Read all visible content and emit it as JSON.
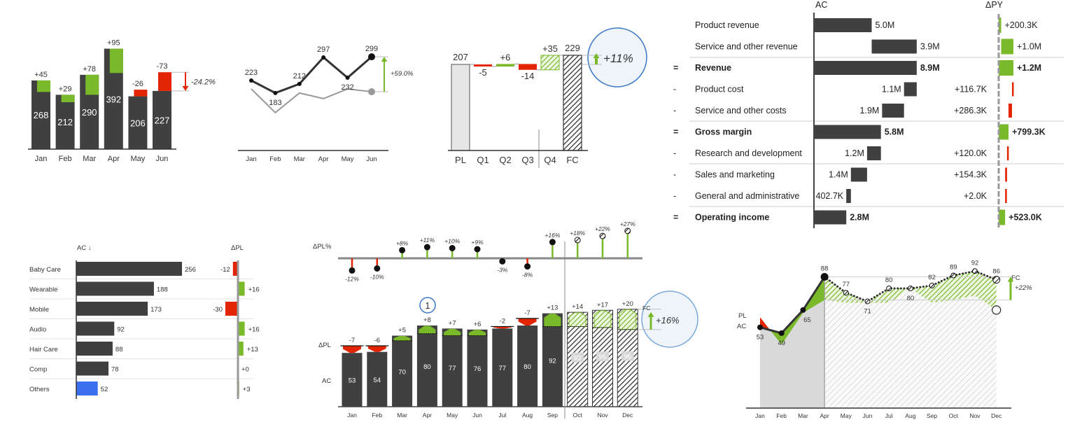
{
  "colors": {
    "actual": "#404040",
    "positive": "#7ab929",
    "negative": "#e32400",
    "plan": "#e6e6e6",
    "highlight": "#3b78c4",
    "others": "#3b6ff0",
    "axis": "#333333"
  },
  "chart_data": [
    {
      "type": "bar",
      "categories": [
        "Jan",
        "Feb",
        "Mar",
        "Apr",
        "May",
        "Jun"
      ],
      "values": [
        268,
        212,
        290,
        392,
        206,
        227
      ],
      "deltas": [
        45,
        29,
        78,
        95,
        -26,
        -73
      ],
      "delta_labels": [
        "+45",
        "+29",
        "+78",
        "+95",
        "-26",
        "-73"
      ],
      "annotation": "-24.2%"
    },
    {
      "type": "line",
      "categories": [
        "Jan",
        "Feb",
        "Mar",
        "Apr",
        "May",
        "Jun"
      ],
      "values": [
        223,
        183,
        212,
        297,
        232,
        299
      ],
      "reference_values": [
        196,
        120,
        183,
        165,
        196,
        187
      ],
      "annotation": "+59.0%"
    },
    {
      "type": "bar",
      "categories": [
        "PL",
        "Q1",
        "Q2",
        "Q3",
        "Q4",
        "FC"
      ],
      "values": [
        207,
        -5,
        6,
        -14,
        35,
        229
      ],
      "labels": [
        "207",
        "-5",
        "+6",
        "-14",
        "+35",
        "229"
      ],
      "annotation": "+11%"
    },
    {
      "type": "table",
      "column_headers": [
        "AC",
        "ΔPY"
      ],
      "rows": [
        {
          "prefix": "",
          "label": "Product revenue",
          "kind": "item",
          "ac": 5.0,
          "ac_label": "5.0M",
          "dpy": 0.2003,
          "dpy_label": "+200.3K"
        },
        {
          "prefix": "",
          "label": "Service and other revenue",
          "kind": "item",
          "ac": 3.9,
          "ac_label": "3.9M",
          "dpy": 1.0,
          "dpy_label": "+1.0M"
        },
        {
          "prefix": "=",
          "label": "Revenue",
          "kind": "total",
          "ac": 8.9,
          "ac_label": "8.9M",
          "dpy": 1.2,
          "dpy_label": "+1.2M"
        },
        {
          "prefix": "-",
          "label": "Product cost",
          "kind": "cost",
          "ac": 1.1,
          "ac_label": "1.1M",
          "dpy": 0.1167,
          "dpy_label": "+116.7K"
        },
        {
          "prefix": "-",
          "label": "Service and other costs",
          "kind": "cost",
          "ac": 1.9,
          "ac_label": "1.9M",
          "dpy": 0.2863,
          "dpy_label": "+286.3K"
        },
        {
          "prefix": "=",
          "label": "Gross margin",
          "kind": "total",
          "ac": 5.8,
          "ac_label": "5.8M",
          "dpy": 0.7993,
          "dpy_label": "+799.3K"
        },
        {
          "prefix": "-",
          "label": "Research and development",
          "kind": "cost",
          "ac": 1.2,
          "ac_label": "1.2M",
          "dpy": 0.12,
          "dpy_label": "+120.0K"
        },
        {
          "prefix": "-",
          "label": "Sales and marketing",
          "kind": "cost",
          "ac": 1.4,
          "ac_label": "1.4M",
          "dpy": 0.1543,
          "dpy_label": "+154.3K"
        },
        {
          "prefix": "-",
          "label": "General and administrative",
          "kind": "cost",
          "ac": 0.4027,
          "ac_label": "402.7K",
          "dpy": 0.002,
          "dpy_label": "+2.0K"
        },
        {
          "prefix": "=",
          "label": "Operating income",
          "kind": "total",
          "ac": 2.8,
          "ac_label": "2.8M",
          "dpy": 0.523,
          "dpy_label": "+523.0K"
        }
      ]
    },
    {
      "type": "bar",
      "orientation": "horizontal",
      "column_headers": [
        "AC ↓",
        "ΔPL"
      ],
      "categories": [
        "Baby Care",
        "Wearable",
        "Mobile",
        "Audio",
        "Hair Care",
        "Comp",
        "Others"
      ],
      "values": [
        256,
        188,
        173,
        92,
        88,
        78,
        52
      ],
      "deltas": [
        -12,
        16,
        -30,
        16,
        13,
        0,
        3
      ],
      "delta_labels": [
        "-12",
        "+16",
        "-30",
        "+16",
        "+13",
        "+0",
        "+3"
      ]
    },
    {
      "type": "bar",
      "categories": [
        "Jan",
        "Feb",
        "Mar",
        "Apr",
        "May",
        "Jun",
        "Jul",
        "Aug",
        "Sep",
        "Oct",
        "Nov",
        "Dec"
      ],
      "row_labels": [
        "ΔPL%",
        "ΔPL",
        "AC"
      ],
      "values": [
        53,
        54,
        70,
        80,
        77,
        76,
        77,
        80,
        92,
        93,
        95,
        96
      ],
      "forecast_from": "Oct",
      "deltas": [
        -7,
        -6,
        5,
        8,
        7,
        6,
        -2,
        -7,
        13,
        14,
        17,
        20
      ],
      "delta_labels": [
        "-7",
        "-6",
        "+5",
        "+8",
        "+7",
        "+6",
        "-2",
        "-7",
        "+13",
        "+14",
        "+17",
        "+20"
      ],
      "delta_pct": [
        -12,
        -10,
        8,
        11,
        10,
        9,
        -3,
        -8,
        16,
        18,
        22,
        27
      ],
      "delta_pct_labels": [
        "-12%",
        "-10%",
        "+8%",
        "+11%",
        "+10%",
        "+9%",
        "-3%",
        "-8%",
        "+16%",
        "+18%",
        "+22%",
        "+27%"
      ],
      "marker": "1",
      "fc_label": "FC",
      "annotation": "+16%"
    },
    {
      "type": "area",
      "categories": [
        "Jan",
        "Feb",
        "Mar",
        "Apr",
        "May",
        "Jun",
        "Jul",
        "Aug",
        "Sep",
        "Oct",
        "Nov",
        "Dec"
      ],
      "series_labels": [
        "PL",
        "AC",
        "FC"
      ],
      "actual": [
        53,
        49,
        65,
        88,
        null,
        null,
        null,
        null,
        null,
        null,
        null,
        null
      ],
      "forecast": [
        null,
        null,
        null,
        88,
        77,
        71,
        80,
        80,
        82,
        89,
        92,
        86
      ],
      "plan": [
        60,
        41,
        63,
        72,
        70,
        70,
        70,
        80,
        70,
        72,
        75,
        65
      ],
      "value_labels": [
        "53",
        "49",
        "65",
        "88",
        "77",
        "71",
        "80",
        "80",
        "82",
        "89",
        "92",
        "86"
      ],
      "annotation": "+22%"
    }
  ]
}
